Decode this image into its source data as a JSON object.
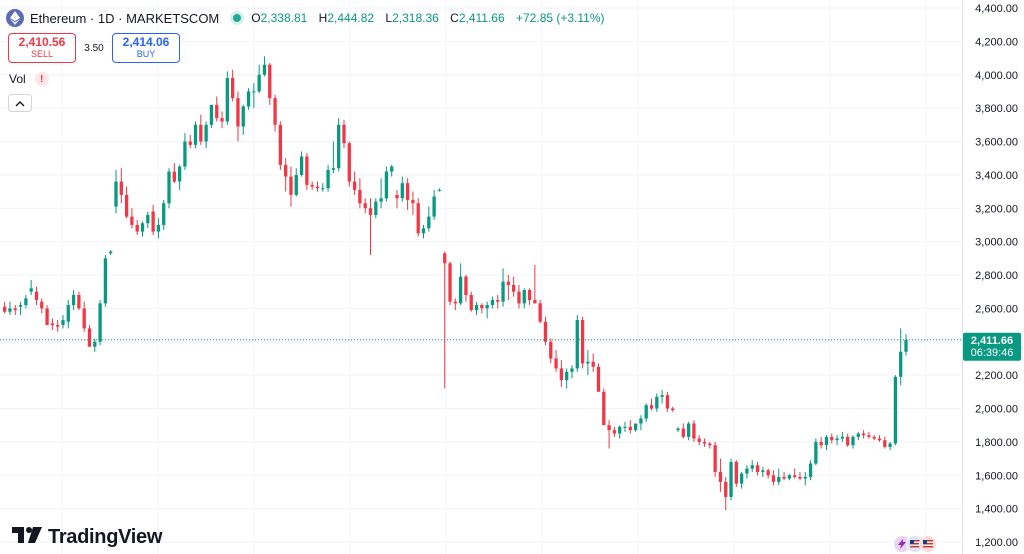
{
  "header": {
    "symbol": "Ethereum · 1D · MARKETSCOM",
    "open_label": "O",
    "open": "2,338.81",
    "high_label": "H",
    "high": "2,444.82",
    "low_label": "L",
    "low": "2,318.36",
    "close_label": "C",
    "close": "2,411.66",
    "change": "+72.85 (+3.11%)"
  },
  "trade": {
    "sell_price": "2,410.56",
    "sell_label": "SELL",
    "spread": "3.50",
    "buy_price": "2,414.06",
    "buy_label": "BUY"
  },
  "indicator": {
    "vol_label": "Vol",
    "warning_glyph": "!"
  },
  "price_marker": {
    "price": "2,411.66",
    "countdown": "06:39:46"
  },
  "branding": {
    "name": "TradingView"
  },
  "colors": {
    "up": "#089981",
    "down": "#f23645",
    "grid": "#f0f3fa",
    "marker": "#089981"
  },
  "chart_data": {
    "type": "candlestick",
    "y_axis": {
      "min": 1200,
      "max": 4400,
      "ticks": [
        1200,
        1400,
        1600,
        1800,
        2000,
        2200,
        2400,
        2600,
        2800,
        3000,
        3200,
        3400,
        3600,
        3800,
        4000,
        4200,
        4400
      ],
      "tick_labels": [
        "1,200.00",
        "1,400.00",
        "1,600.00",
        "1,800.00",
        "2,000.00",
        "2,200.00",
        "2,400.00",
        "2,600.00",
        "2,800.00",
        "3,000.00",
        "3,200.00",
        "3,400.00",
        "3,600.00",
        "3,800.00",
        "4,000.00",
        "4,200.00",
        "4,400.00"
      ],
      "position": "right"
    },
    "grid": true,
    "last_price": 2411.66,
    "candles": [
      [
        2610,
        2640,
        2570,
        2580
      ],
      [
        2580,
        2640,
        2560,
        2600
      ],
      [
        2600,
        2620,
        2560,
        2590
      ],
      [
        2610,
        2640,
        2560,
        2620
      ],
      [
        2620,
        2680,
        2600,
        2660
      ],
      [
        2700,
        2770,
        2680,
        2720
      ],
      [
        2700,
        2730,
        2620,
        2650
      ],
      [
        2640,
        2660,
        2570,
        2600
      ],
      [
        2600,
        2620,
        2500,
        2500
      ],
      [
        2510,
        2540,
        2470,
        2500
      ],
      [
        2500,
        2530,
        2460,
        2490
      ],
      [
        2500,
        2560,
        2480,
        2530
      ],
      [
        2520,
        2650,
        2480,
        2620
      ],
      [
        2620,
        2710,
        2590,
        2680
      ],
      [
        2680,
        2700,
        2590,
        2600
      ],
      [
        2600,
        2640,
        2460,
        2480
      ],
      [
        2480,
        2500,
        2370,
        2370
      ],
      [
        2370,
        2420,
        2340,
        2400
      ],
      [
        2400,
        2650,
        2380,
        2630
      ],
      [
        2630,
        2920,
        2610,
        2900
      ],
      [
        2930,
        2950,
        2920,
        2940
      ],
      [
        3210,
        3430,
        3170,
        3360
      ],
      [
        3360,
        3440,
        3230,
        3280
      ],
      [
        3280,
        3330,
        3140,
        3150
      ],
      [
        3150,
        3200,
        3080,
        3100
      ],
      [
        3100,
        3130,
        3040,
        3060
      ],
      [
        3060,
        3120,
        3030,
        3110
      ],
      [
        3110,
        3180,
        3080,
        3160
      ],
      [
        3180,
        3220,
        3040,
        3060
      ],
      [
        3060,
        3140,
        3020,
        3100
      ],
      [
        3100,
        3250,
        3070,
        3230
      ],
      [
        3230,
        3440,
        3200,
        3420
      ],
      [
        3420,
        3470,
        3350,
        3360
      ],
      [
        3360,
        3460,
        3310,
        3450
      ],
      [
        3450,
        3650,
        3430,
        3600
      ],
      [
        3600,
        3640,
        3560,
        3580
      ],
      [
        3580,
        3720,
        3560,
        3700
      ],
      [
        3700,
        3760,
        3580,
        3600
      ],
      [
        3600,
        3720,
        3560,
        3700
      ],
      [
        3700,
        3820,
        3680,
        3820
      ],
      [
        3820,
        3870,
        3720,
        3740
      ],
      [
        3740,
        3780,
        3680,
        3720
      ],
      [
        3720,
        4020,
        3700,
        3980
      ],
      [
        3980,
        4030,
        3840,
        3860
      ],
      [
        3860,
        3900,
        3600,
        3690
      ],
      [
        3690,
        3820,
        3640,
        3810
      ],
      [
        3810,
        3920,
        3790,
        3900
      ],
      [
        3900,
        3950,
        3800,
        3900
      ],
      [
        3900,
        4060,
        3890,
        4000
      ],
      [
        4000,
        4110,
        3990,
        4060
      ],
      [
        4060,
        4070,
        3820,
        3860
      ],
      [
        3860,
        3880,
        3660,
        3700
      ],
      [
        3700,
        3720,
        3430,
        3460
      ],
      [
        3460,
        3500,
        3300,
        3390
      ],
      [
        3390,
        3450,
        3210,
        3280
      ],
      [
        3280,
        3440,
        3270,
        3400
      ],
      [
        3400,
        3540,
        3390,
        3510
      ],
      [
        3510,
        3530,
        3310,
        3340
      ],
      [
        3340,
        3360,
        3310,
        3330
      ],
      [
        3330,
        3360,
        3300,
        3320
      ],
      [
        3320,
        3350,
        3300,
        3320
      ],
      [
        3320,
        3460,
        3300,
        3430
      ],
      [
        3430,
        3600,
        3410,
        3440
      ],
      [
        3440,
        3740,
        3420,
        3700
      ],
      [
        3700,
        3730,
        3560,
        3590
      ],
      [
        3590,
        3600,
        3330,
        3360
      ],
      [
        3360,
        3420,
        3280,
        3310
      ],
      [
        3310,
        3380,
        3200,
        3230
      ],
      [
        3230,
        3260,
        3170,
        3200
      ],
      [
        3200,
        3260,
        2920,
        3160
      ],
      [
        3160,
        3260,
        3140,
        3240
      ],
      [
        3240,
        3380,
        3200,
        3260
      ],
      [
        3260,
        3450,
        3240,
        3420
      ],
      [
        3420,
        3460,
        3390,
        3450
      ],
      [
        3280,
        3310,
        3200,
        3260
      ],
      [
        3260,
        3390,
        3240,
        3350
      ],
      [
        3350,
        3380,
        3190,
        3250
      ],
      [
        3250,
        3300,
        3160,
        3230
      ],
      [
        3230,
        3260,
        3030,
        3050
      ],
      [
        3050,
        3100,
        3020,
        3080
      ],
      [
        3080,
        3210,
        3060,
        3150
      ],
      [
        3150,
        3310,
        3130,
        3270
      ],
      [
        3310,
        3320,
        3300,
        3310
      ],
      [
        2930,
        2940,
        2120,
        2870
      ],
      [
        2870,
        2880,
        2620,
        2640
      ],
      [
        2640,
        2660,
        2590,
        2630
      ],
      [
        2630,
        2870,
        2620,
        2790
      ],
      [
        2790,
        2800,
        2640,
        2680
      ],
      [
        2680,
        2700,
        2580,
        2590
      ],
      [
        2590,
        2640,
        2560,
        2620
      ],
      [
        2620,
        2630,
        2570,
        2600
      ],
      [
        2600,
        2640,
        2540,
        2620
      ],
      [
        2620,
        2670,
        2600,
        2650
      ],
      [
        2650,
        2680,
        2600,
        2640
      ],
      [
        2640,
        2840,
        2610,
        2760
      ],
      [
        2760,
        2800,
        2650,
        2740
      ],
      [
        2740,
        2790,
        2670,
        2700
      ],
      [
        2700,
        2740,
        2600,
        2630
      ],
      [
        2630,
        2720,
        2600,
        2710
      ],
      [
        2710,
        2720,
        2620,
        2650
      ],
      [
        2650,
        2860,
        2630,
        2630
      ],
      [
        2630,
        2650,
        2510,
        2520
      ],
      [
        2520,
        2550,
        2380,
        2400
      ],
      [
        2400,
        2420,
        2270,
        2300
      ],
      [
        2300,
        2350,
        2220,
        2240
      ],
      [
        2240,
        2290,
        2130,
        2170
      ],
      [
        2170,
        2240,
        2120,
        2220
      ],
      [
        2220,
        2260,
        2180,
        2240
      ],
      [
        2240,
        2560,
        2220,
        2530
      ],
      [
        2530,
        2550,
        2240,
        2270
      ],
      [
        2270,
        2350,
        2200,
        2280
      ],
      [
        2280,
        2330,
        2220,
        2250
      ],
      [
        2250,
        2270,
        2120,
        2100
      ],
      [
        2100,
        2120,
        1910,
        1900
      ],
      [
        1900,
        1930,
        1760,
        1870
      ],
      [
        1870,
        1890,
        1830,
        1850
      ],
      [
        1850,
        1900,
        1820,
        1890
      ],
      [
        1890,
        1920,
        1860,
        1890
      ],
      [
        1890,
        1930,
        1850,
        1870
      ],
      [
        1870,
        1910,
        1860,
        1910
      ],
      [
        1910,
        1960,
        1870,
        1940
      ],
      [
        1940,
        2030,
        1920,
        2020
      ],
      [
        2020,
        2060,
        1990,
        2000
      ],
      [
        2000,
        2090,
        1980,
        2070
      ],
      [
        2070,
        2110,
        2030,
        2080
      ],
      [
        2080,
        2100,
        1980,
        2000
      ],
      [
        2000,
        2010,
        1980,
        1990
      ],
      [
        1870,
        1890,
        1860,
        1880
      ],
      [
        1880,
        1910,
        1820,
        1830
      ],
      [
        1830,
        1920,
        1810,
        1910
      ],
      [
        1910,
        1930,
        1800,
        1820
      ],
      [
        1820,
        1840,
        1780,
        1800
      ],
      [
        1800,
        1820,
        1770,
        1790
      ],
      [
        1790,
        1800,
        1760,
        1780
      ],
      [
        1780,
        1800,
        1590,
        1620
      ],
      [
        1620,
        1700,
        1500,
        1560
      ],
      [
        1560,
        1590,
        1390,
        1470
      ],
      [
        1470,
        1700,
        1450,
        1680
      ],
      [
        1680,
        1690,
        1530,
        1550
      ],
      [
        1550,
        1620,
        1520,
        1610
      ],
      [
        1610,
        1660,
        1580,
        1640
      ],
      [
        1640,
        1690,
        1620,
        1660
      ],
      [
        1660,
        1680,
        1600,
        1620
      ],
      [
        1620,
        1650,
        1590,
        1630
      ],
      [
        1630,
        1640,
        1580,
        1600
      ],
      [
        1600,
        1630,
        1540,
        1560
      ],
      [
        1560,
        1640,
        1540,
        1590
      ],
      [
        1590,
        1620,
        1570,
        1580
      ],
      [
        1580,
        1610,
        1570,
        1600
      ],
      [
        1600,
        1640,
        1580,
        1590
      ],
      [
        1590,
        1620,
        1570,
        1580
      ],
      [
        1580,
        1620,
        1540,
        1590
      ],
      [
        1590,
        1690,
        1570,
        1670
      ],
      [
        1670,
        1820,
        1660,
        1800
      ],
      [
        1800,
        1830,
        1760,
        1780
      ],
      [
        1780,
        1840,
        1750,
        1830
      ],
      [
        1830,
        1850,
        1790,
        1810
      ],
      [
        1810,
        1840,
        1780,
        1820
      ],
      [
        1820,
        1860,
        1800,
        1830
      ],
      [
        1830,
        1850,
        1770,
        1780
      ],
      [
        1780,
        1840,
        1760,
        1830
      ],
      [
        1830,
        1860,
        1810,
        1850
      ],
      [
        1850,
        1870,
        1820,
        1840
      ],
      [
        1840,
        1860,
        1820,
        1830
      ],
      [
        1830,
        1840,
        1810,
        1820
      ],
      [
        1820,
        1840,
        1800,
        1810
      ],
      [
        1810,
        1830,
        1760,
        1770
      ],
      [
        1770,
        1800,
        1750,
        1790
      ],
      [
        1790,
        2200,
        1780,
        2190
      ],
      [
        2190,
        2480,
        2140,
        2340
      ],
      [
        2340,
        2445,
        2318,
        2411.66
      ]
    ]
  }
}
